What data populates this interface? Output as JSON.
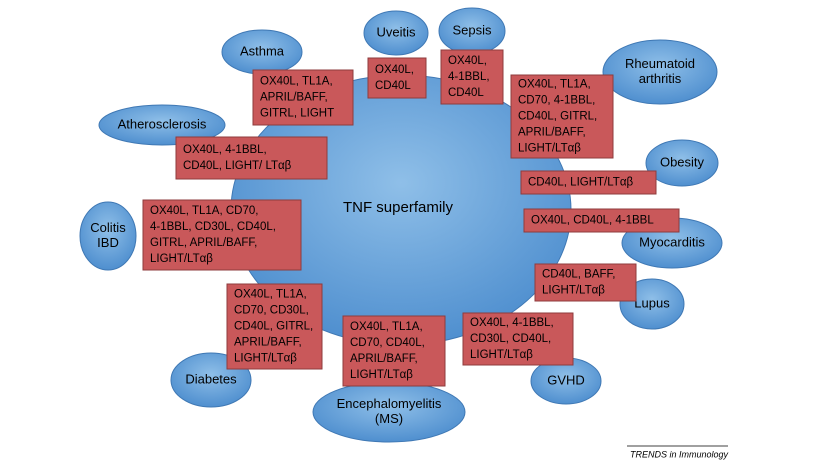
{
  "center": "TNF superfamily",
  "diseases": [
    {
      "label": [
        "Asthma"
      ],
      "ligands": [
        "OX40L, TL1A,",
        "APRIL/BAFF,",
        "GITRL, LIGHT"
      ]
    },
    {
      "label": [
        "Uveitis"
      ],
      "ligands": [
        "OX40L,",
        "CD40L"
      ]
    },
    {
      "label": [
        "Sepsis"
      ],
      "ligands": [
        "OX40L,",
        "4-1BBL,",
        "CD40L"
      ]
    },
    {
      "label": [
        "Rheumatoid",
        "arthritis"
      ],
      "ligands": [
        "OX40L, TL1A,",
        "CD70, 4-1BBL,",
        "CD40L, GITRL,",
        "APRIL/BAFF,",
        "LIGHT/LTαβ"
      ]
    },
    {
      "label": [
        "Atherosclerosis"
      ],
      "ligands": [
        "OX40L, 4-1BBL,",
        "CD40L, LIGHT/ LTαβ"
      ]
    },
    {
      "label": [
        "Obesity"
      ],
      "ligands": [
        "CD40L, LIGHT/LTαβ"
      ]
    },
    {
      "label": [
        "Colitis",
        "IBD"
      ],
      "ligands": [
        "OX40L, TL1A, CD70,",
        "4-1BBL, CD30L, CD40L,",
        "GITRL, APRIL/BAFF,",
        "LIGHT/LTαβ"
      ]
    },
    {
      "label": [
        "Myocarditis"
      ],
      "ligands": [
        "OX40L, CD40L, 4-1BBL"
      ]
    },
    {
      "label": [
        "Lupus"
      ],
      "ligands": [
        "CD40L, BAFF,",
        "LIGHT/LTαβ"
      ]
    },
    {
      "label": [
        "Diabetes"
      ],
      "ligands": [
        "OX40L, TL1A,",
        "CD70, CD30L,",
        "CD40L, GITRL,",
        "APRIL/BAFF,",
        "LIGHT/LTαβ"
      ]
    },
    {
      "label": [
        "Encephalomyelitis",
        "(MS)"
      ],
      "ligands": [
        "OX40L, TL1A,",
        "CD70, CD40L,",
        "APRIL/BAFF,",
        "LIGHT/LTαβ"
      ]
    },
    {
      "label": [
        "GVHD"
      ],
      "ligands": [
        "OX40L, 4-1BBL,",
        "CD30L, CD40L,",
        "LIGHT/LTαβ"
      ]
    }
  ],
  "footer": "TRENDS in Immunology"
}
